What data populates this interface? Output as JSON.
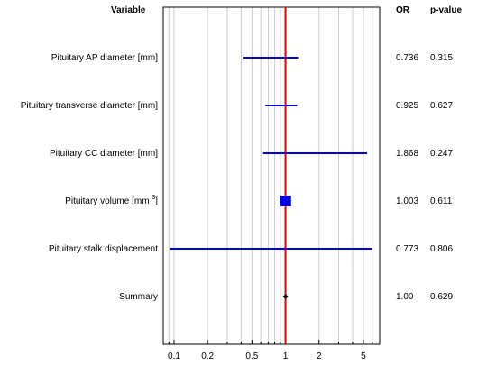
{
  "header": {
    "variable": "Variable",
    "or": "OR",
    "pvalue": "p-value"
  },
  "chart_data": {
    "type": "forest",
    "xscale": "log",
    "xlim": [
      0.08,
      7
    ],
    "reference_line": 1,
    "xticks": [
      {
        "value": 0.1,
        "label": "0.1"
      },
      {
        "value": 0.2,
        "label": "0.2"
      },
      {
        "value": 0.5,
        "label": "0.5"
      },
      {
        "value": 1,
        "label": "1"
      },
      {
        "value": 2,
        "label": "2"
      },
      {
        "value": 5,
        "label": "5"
      }
    ],
    "grid": true,
    "rows": [
      {
        "label": "Pituitary AP diameter [mm]",
        "or": 0.736,
        "or_text": "0.736",
        "ci": [
          0.42,
          1.3
        ],
        "p": "0.315"
      },
      {
        "label": "Pituitary transverse diameter [mm]",
        "or": 0.925,
        "or_text": "0.925",
        "ci": [
          0.66,
          1.27
        ],
        "p": "0.627"
      },
      {
        "label": "Pituitary CC diameter [mm]",
        "or": 1.868,
        "or_text": "1.868",
        "ci": [
          0.63,
          5.4
        ],
        "p": "0.247"
      },
      {
        "label": "Pituitary volume [mm",
        "superscript": "3",
        "label_suffix": "]",
        "or": 1.003,
        "or_text": "1.003",
        "ci": [
          0.9,
          1.12
        ],
        "p": "0.611",
        "marker": "square"
      },
      {
        "label": "Pituitary stalk displacement",
        "or": 0.773,
        "or_text": "0.773",
        "ci": [
          0.092,
          6.0
        ],
        "p": "0.806"
      },
      {
        "label": "Summary",
        "or": 1.0,
        "or_text": "1.00",
        "ci": [
          0.97,
          1.03
        ],
        "p": "0.629",
        "marker": "diamond"
      }
    ],
    "colors": {
      "ci": "#0000dd",
      "reference": "#dd0000",
      "grid": "#cccccc",
      "axis": "#000000"
    }
  }
}
